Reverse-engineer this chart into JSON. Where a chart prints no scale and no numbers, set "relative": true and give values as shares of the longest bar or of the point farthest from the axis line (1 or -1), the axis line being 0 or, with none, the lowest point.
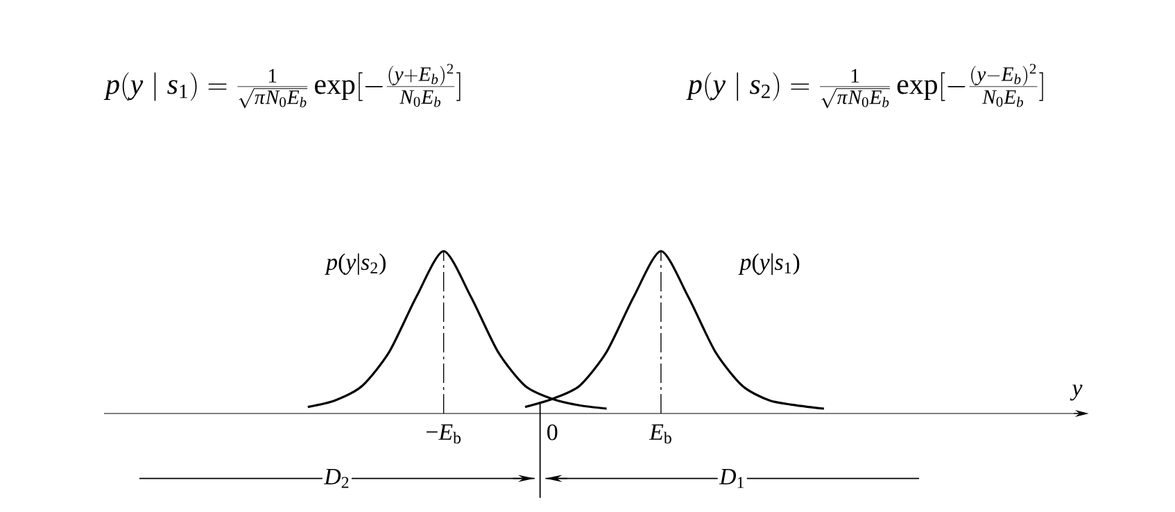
{
  "chart_data": {
    "type": "line",
    "relative": true,
    "xlabel": "y",
    "categories": [
      null,
      null,
      null,
      null,
      null,
      null,
      null,
      null,
      null,
      null,
      null,
      null,
      "−*E*$_{b}$",
      null,
      null,
      null,
      "0",
      null,
      null,
      null,
      "*E*$_{b}$",
      null,
      null,
      null,
      null,
      null,
      null,
      null,
      null,
      null,
      null,
      null,
      null,
      null,
      null,
      null
    ],
    "series": [
      {
        "name": "*p*(*y*|*s*$_{2}$)",
        "color": "#000000",
        "values": [
          null,
          null,
          null,
          null,
          null,
          null,
          null,
          0.04,
          0.08,
          0.17,
          0.38,
          0.72,
          1.0,
          0.72,
          0.38,
          0.17,
          0.09,
          0.05,
          0.03,
          null,
          null,
          null,
          null,
          null,
          null,
          null,
          null,
          null,
          null,
          null,
          null,
          null,
          null,
          null,
          null,
          null
        ]
      },
      {
        "name": "*p*(*y*|*s*$_{1}$)",
        "color": "#000000",
        "values": [
          null,
          null,
          null,
          null,
          null,
          null,
          null,
          null,
          null,
          null,
          null,
          null,
          null,
          null,
          null,
          0.04,
          0.09,
          0.17,
          0.38,
          0.72,
          1.0,
          0.72,
          0.38,
          0.17,
          0.08,
          0.05,
          0.03,
          null,
          null,
          null,
          null,
          null,
          null,
          null,
          null,
          null
        ]
      }
    ],
    "ref_lines": [
      {
        "axis": "x",
        "value": "−*E*$_{b}$",
        "line_style": "dashed"
      },
      {
        "axis": "x",
        "value": "*E*$_{b}$",
        "line_style": "dashed"
      }
    ],
    "annotations": [
      "p(y\\mid s_1)=\\frac{1}{\\sqrt{\\pi N_0E_b}}\\exp[-\\frac{(y+E_b)^2}{N_0E_b}]",
      "p(y\\mid s_2)=\\frac{1}{\\sqrt{\\pi N_0E_b}}\\exp[-\\frac{(y-E_b)^2}{N_0E_b}]",
      "*D*$_{2}$",
      "*D*$_{1}$"
    ]
  }
}
